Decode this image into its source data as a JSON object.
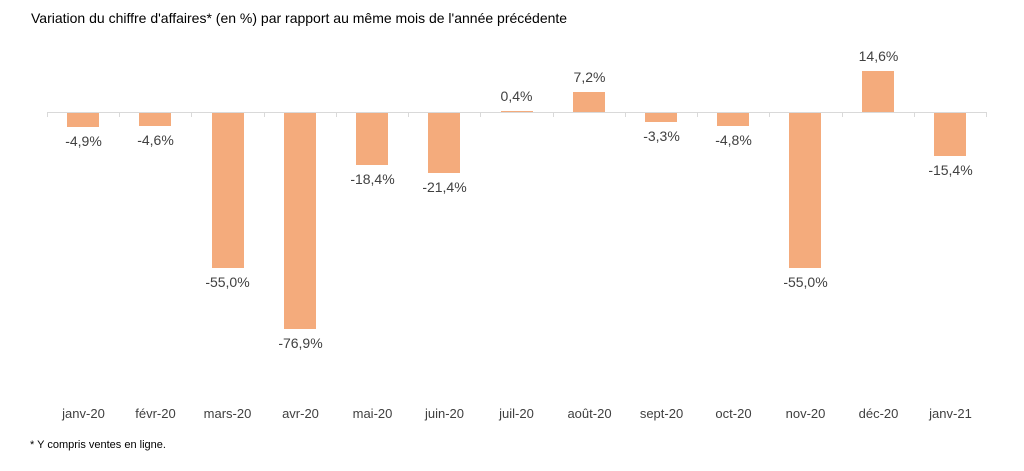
{
  "footnote": "* Y compris ventes en ligne.",
  "colors": {
    "bar": "#F4AB7C",
    "axis": "#D9D9D9",
    "data_label": "#404040",
    "axis_label": "#404040",
    "title": "#000000"
  },
  "chart_data": {
    "type": "bar",
    "title": "Variation du chiffre d'affaires* (en %) par rapport au même mois de l'année précédente",
    "categories": [
      "janv-20",
      "févr-20",
      "mars-20",
      "avr-20",
      "mai-20",
      "juin-20",
      "juil-20",
      "août-20",
      "sept-20",
      "oct-20",
      "nov-20",
      "déc-20",
      "janv-21"
    ],
    "values": [
      -4.9,
      -4.6,
      -55.0,
      -76.9,
      -18.4,
      -21.4,
      0.4,
      7.2,
      -3.3,
      -4.8,
      -55.0,
      14.6,
      -15.4
    ],
    "labels": [
      "-4,9%",
      "-4,6%",
      "-55,0%",
      "-76,9%",
      "-18,4%",
      "-21,4%",
      "0,4%",
      "7,2%",
      "-3,3%",
      "-4,8%",
      "-55,0%",
      "14,6%",
      "-15,4%"
    ],
    "xlabel": "",
    "ylabel": "",
    "ylim": [
      -80,
      20
    ],
    "grid": false,
    "legend": false,
    "data_labels": "outside-end",
    "baseline": 0
  }
}
